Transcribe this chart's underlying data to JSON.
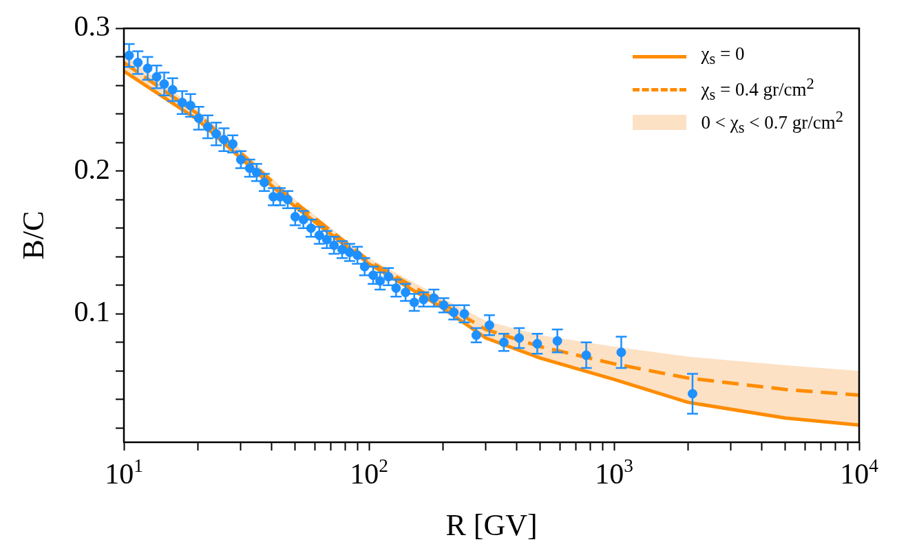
{
  "chart_data": {
    "type": "scatter",
    "xlabel": "R [GV]",
    "ylabel": "B/C",
    "log": "x",
    "grid": false,
    "legend": "top right",
    "xlim": [
      10,
      10000
    ],
    "ylim": [
      0.01,
      0.3
    ],
    "xticks": [
      {
        "value": 10,
        "label": "10$^{1}$"
      },
      {
        "value": 20,
        "label": null
      },
      {
        "value": 30,
        "label": null
      },
      {
        "value": 40,
        "label": null
      },
      {
        "value": 50,
        "label": null
      },
      {
        "value": 60,
        "label": null
      },
      {
        "value": 70,
        "label": null
      },
      {
        "value": 80,
        "label": null
      },
      {
        "value": 90,
        "label": null
      },
      {
        "value": 100,
        "label": "10$^{2}$"
      },
      {
        "value": 200,
        "label": null
      },
      {
        "value": 300,
        "label": null
      },
      {
        "value": 400,
        "label": null
      },
      {
        "value": 500,
        "label": null
      },
      {
        "value": 600,
        "label": null
      },
      {
        "value": 700,
        "label": null
      },
      {
        "value": 800,
        "label": null
      },
      {
        "value": 900,
        "label": null
      },
      {
        "value": 1000,
        "label": "10$^{3}$"
      },
      {
        "value": 2000,
        "label": null
      },
      {
        "value": 3000,
        "label": null
      },
      {
        "value": 4000,
        "label": null
      },
      {
        "value": 5000,
        "label": null
      },
      {
        "value": 6000,
        "label": null
      },
      {
        "value": 7000,
        "label": null
      },
      {
        "value": 8000,
        "label": null
      },
      {
        "value": 9000,
        "label": null
      },
      {
        "value": 10000,
        "label": "10$^{4}$"
      }
    ],
    "yticks": [
      {
        "value": 0.02,
        "label": null
      },
      {
        "value": 0.04,
        "label": null
      },
      {
        "value": 0.06,
        "label": null
      },
      {
        "value": 0.08,
        "label": null
      },
      {
        "value": 0.1,
        "label": "0.1"
      },
      {
        "value": 0.12,
        "label": null
      },
      {
        "value": 0.14,
        "label": null
      },
      {
        "value": 0.16,
        "label": null
      },
      {
        "value": 0.18,
        "label": null
      },
      {
        "value": 0.2,
        "label": "0.2"
      },
      {
        "value": 0.22,
        "label": null
      },
      {
        "value": 0.24,
        "label": null
      },
      {
        "value": 0.26,
        "label": null
      },
      {
        "value": 0.28,
        "label": null
      },
      {
        "value": 0.3,
        "label": "0.3"
      }
    ],
    "series": [
      {
        "type": "line",
        "name": "χ$_{s}$ = 0",
        "color": "#ff8c00",
        "line_style": "solid",
        "marker": "none",
        "x": [
          10,
          20,
          50,
          100,
          200,
          300,
          500,
          1000,
          2000,
          5000,
          10000
        ],
        "values": [
          0.27,
          0.236,
          0.175,
          0.135,
          0.104,
          0.083,
          0.069,
          0.054,
          0.038,
          0.027,
          0.022
        ]
      },
      {
        "type": "line",
        "name": "χ$_{s}$ = 0.4 gr/cm$^{2}$",
        "color": "#ff8c00",
        "line_style": "dashed",
        "marker": "none",
        "x": [
          10,
          20,
          50,
          100,
          200,
          300,
          500,
          1000,
          2000,
          5000,
          10000
        ],
        "values": [
          0.276,
          0.24,
          0.178,
          0.137,
          0.107,
          0.089,
          0.077,
          0.065,
          0.055,
          0.047,
          0.043
        ]
      },
      {
        "type": "line",
        "name": "0 < χ$_{s}$ < 0.7 gr/cm$^{2}$",
        "color": "#fde1c4",
        "marker": "none",
        "x": [
          10,
          20,
          50,
          100,
          200,
          300,
          500,
          1000,
          2000,
          5000,
          10000
        ],
        "values": [
          null,
          null,
          null,
          null,
          null,
          null,
          null,
          null,
          null,
          null,
          null
        ],
        "lower": [
          0.27,
          0.236,
          0.175,
          0.135,
          0.104,
          0.083,
          0.069,
          0.054,
          0.038,
          0.027,
          0.022
        ],
        "upper": [
          0.282,
          0.243,
          0.18,
          0.139,
          0.111,
          0.095,
          0.085,
          0.077,
          0.07,
          0.064,
          0.06
        ]
      },
      {
        "type": "scatter",
        "color": "#1e90ff",
        "marker": "circle",
        "x": [
          10.5,
          11.4,
          12.5,
          13.6,
          14.6,
          15.8,
          17.3,
          18.7,
          20.2,
          22,
          23.8,
          25.6,
          27.8,
          30,
          32.6,
          34.8,
          37.4,
          40.7,
          43.4,
          46.6,
          50,
          54,
          58,
          62.7,
          67.3,
          72,
          77.7,
          83.4,
          89.7,
          96,
          104,
          111,
          120,
          129,
          141,
          153,
          167,
          184,
          202,
          222,
          245,
          274,
          310,
          355,
          410,
          486,
          587,
          770,
          1070,
          2090
        ],
        "values": [
          0.281,
          0.276,
          0.272,
          0.266,
          0.261,
          0.257,
          0.248,
          0.246,
          0.237,
          0.231,
          0.226,
          0.222,
          0.219,
          0.208,
          0.202,
          0.199,
          0.192,
          0.182,
          0.182,
          0.18,
          0.168,
          0.166,
          0.16,
          0.155,
          0.152,
          0.148,
          0.145,
          0.143,
          0.141,
          0.133,
          0.127,
          0.123,
          0.126,
          0.118,
          0.115,
          0.108,
          0.11,
          0.111,
          0.106,
          0.101,
          0.1,
          0.085,
          0.092,
          0.08,
          0.083,
          0.079,
          0.081,
          0.071,
          0.073,
          0.044
        ],
        "errors": [
          0.008,
          0.008,
          0.008,
          0.008,
          0.008,
          0.008,
          0.008,
          0.008,
          0.008,
          0.008,
          0.008,
          0.008,
          0.006,
          0.006,
          0.006,
          0.006,
          0.006,
          0.006,
          0.006,
          0.006,
          0.006,
          0.006,
          0.006,
          0.006,
          0.006,
          0.006,
          0.006,
          0.006,
          0.006,
          0.006,
          0.006,
          0.006,
          0.006,
          0.006,
          0.006,
          0.006,
          0.005,
          0.006,
          0.005,
          0.005,
          0.006,
          0.005,
          0.007,
          0.006,
          0.007,
          0.007,
          0.008,
          0.009,
          0.011,
          0.014
        ]
      }
    ]
  }
}
